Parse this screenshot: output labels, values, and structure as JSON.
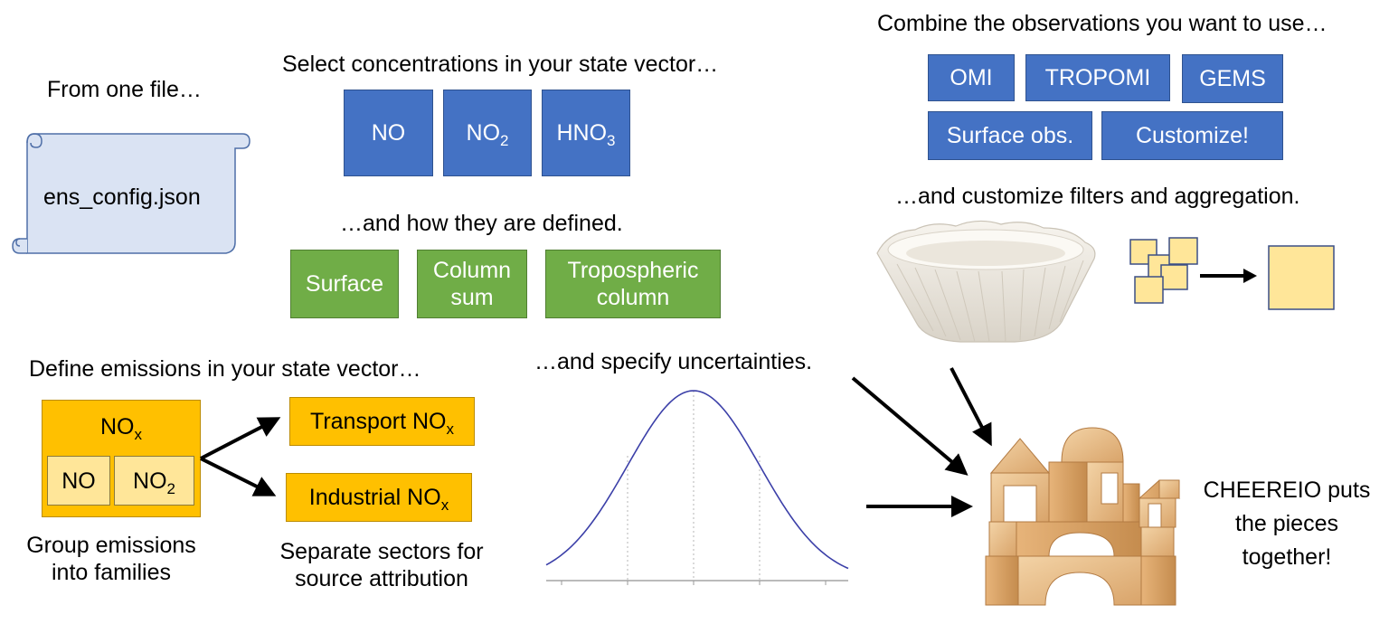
{
  "config": {
    "heading": "From one file…",
    "filename": "ens_config.json"
  },
  "concentrations": {
    "heading": "Select concentrations in your state vector…",
    "species": [
      {
        "base": "NO",
        "sub": ""
      },
      {
        "base": "NO",
        "sub": "2"
      },
      {
        "base": "HNO",
        "sub": "3"
      }
    ],
    "definition_heading": "…and how they are defined.",
    "definitions": [
      {
        "line1": "Surface",
        "line2": ""
      },
      {
        "line1": "Column",
        "line2": "sum"
      },
      {
        "line1": "Tropospheric",
        "line2": "column"
      }
    ]
  },
  "observations": {
    "heading": "Combine the observations you want to use…",
    "row1": [
      "OMI",
      "TROPOMI",
      "GEMS"
    ],
    "row2": [
      "Surface obs.",
      "Customize!"
    ],
    "filter_heading": "…and customize filters and aggregation."
  },
  "emissions": {
    "heading": "Define emissions in your state vector…",
    "family": {
      "base": "NO",
      "sub": "x"
    },
    "members": [
      {
        "base": "NO",
        "sub": ""
      },
      {
        "base": "NO",
        "sub": "2"
      }
    ],
    "sectors": [
      {
        "base": "Transport NO",
        "sub": "x"
      },
      {
        "base": "Industrial NO",
        "sub": "x"
      }
    ],
    "family_caption_line1": "Group emissions",
    "family_caption_line2": "into families",
    "sector_caption_line1": "Separate sectors for",
    "sector_caption_line2": "source attribution"
  },
  "uncertainty": {
    "heading": "…and specify uncertainties."
  },
  "conclusion": {
    "line1": "CHEEREIO puts",
    "line2": "the pieces",
    "line3": "together!"
  },
  "colors": {
    "blue": "#4472c4",
    "green": "#70ad47",
    "orange": "#ffc000",
    "pale_yellow": "#ffe699",
    "scroll_blue": "#dae3f3",
    "curve_blue": "#3b3fa8"
  },
  "icons": [
    "scroll-icon",
    "coffee-filter-icon",
    "wooden-blocks-icon",
    "aggregation-icon",
    "arrow-icon",
    "bell-curve-icon"
  ]
}
